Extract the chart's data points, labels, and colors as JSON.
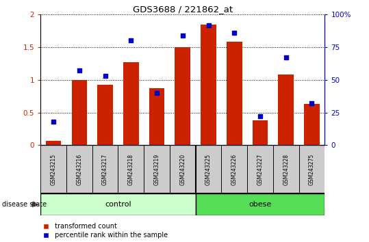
{
  "title": "GDS3688 / 221862_at",
  "samples": [
    "GSM243215",
    "GSM243216",
    "GSM243217",
    "GSM243218",
    "GSM243219",
    "GSM243220",
    "GSM243225",
    "GSM243226",
    "GSM243227",
    "GSM243228",
    "GSM243275"
  ],
  "transformed_count": [
    0.07,
    1.0,
    0.92,
    1.27,
    0.87,
    1.5,
    1.85,
    1.58,
    0.38,
    1.08,
    0.63
  ],
  "percentile_rank": [
    18,
    57,
    53,
    80,
    40,
    84,
    92,
    86,
    22,
    67,
    32
  ],
  "n_control": 6,
  "n_obese": 5,
  "control_color": "#ccffcc",
  "obese_color": "#55dd55",
  "bar_color": "#cc2200",
  "dot_color": "#0000cc",
  "label_bg_color": "#cccccc",
  "ylim_left": [
    0,
    2
  ],
  "ylim_right": [
    0,
    100
  ],
  "yticks_left": [
    0,
    0.5,
    1.0,
    1.5,
    2.0
  ],
  "yticks_right": [
    0,
    25,
    50,
    75,
    100
  ],
  "yticklabels_left": [
    "0",
    "0.5",
    "1",
    "1.5",
    "2"
  ],
  "yticklabels_right": [
    "0",
    "25",
    "50",
    "75",
    "100%"
  ]
}
